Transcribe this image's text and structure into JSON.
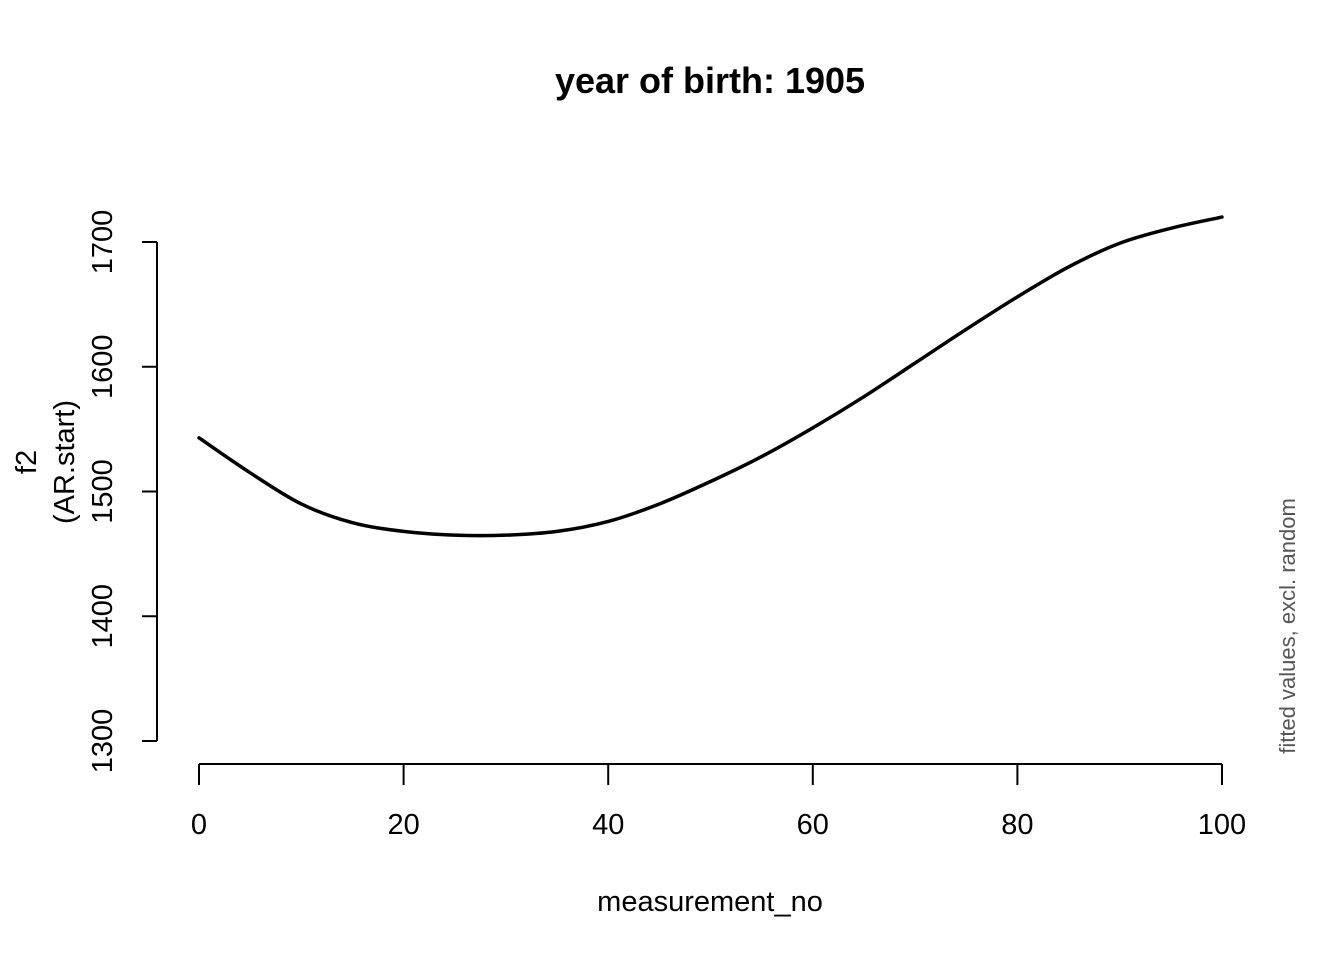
{
  "chart_data": {
    "type": "line",
    "title": "year of birth: 1905",
    "xlabel": "measurement_no",
    "ylabel_line1": "f2",
    "ylabel_line2": "(AR.start)",
    "side_note": "fitted values, excl. random",
    "xlim": [
      0,
      100
    ],
    "ylim": [
      1300,
      1700
    ],
    "x_ticks": [
      0,
      20,
      40,
      60,
      80,
      100
    ],
    "y_ticks": [
      1300,
      1400,
      1500,
      1600,
      1700
    ],
    "x_tick_labels": [
      "0",
      "20",
      "40",
      "60",
      "80",
      "100"
    ],
    "y_tick_labels": [
      "1300",
      "1400",
      "1500",
      "1600",
      "1700"
    ],
    "grid": false,
    "legend": "none",
    "series": [
      {
        "color": "#000000",
        "x": [
          0,
          5,
          10,
          15,
          20,
          25,
          30,
          35,
          40,
          45,
          50,
          55,
          60,
          65,
          70,
          75,
          80,
          85,
          90,
          95,
          100
        ],
        "y": [
          1543,
          1515,
          1490,
          1475,
          1468,
          1465,
          1465,
          1468,
          1476,
          1490,
          1508,
          1528,
          1551,
          1576,
          1603,
          1630,
          1656,
          1680,
          1699,
          1711,
          1720
        ]
      }
    ]
  }
}
